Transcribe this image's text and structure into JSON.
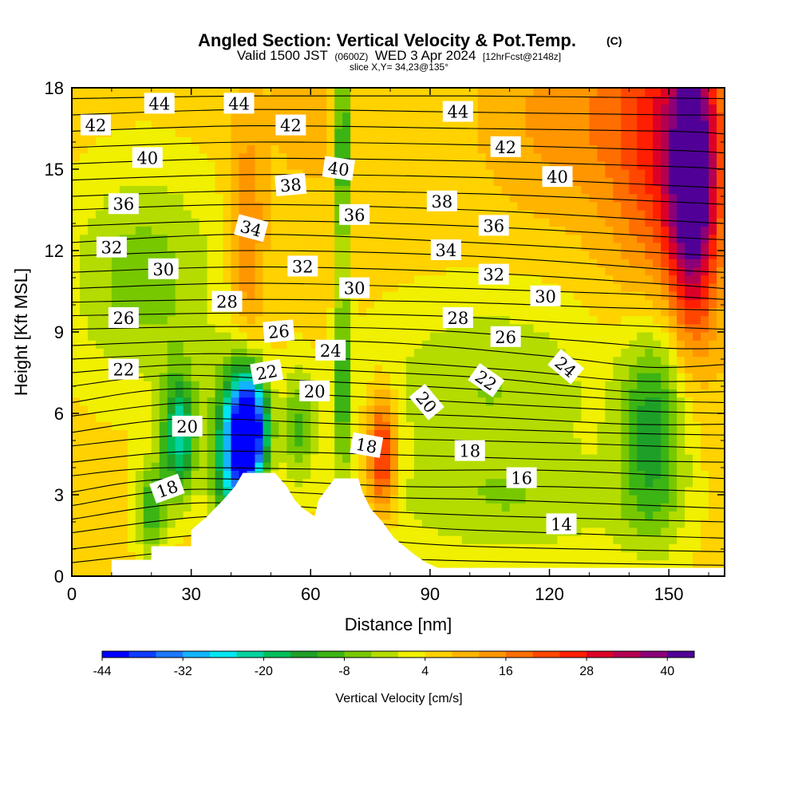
{
  "chart_data": {
    "type": "heatmap",
    "title": "Angled Section: Vertical Velocity & Pot.Temp.",
    "title_mark": "(C)",
    "subtitle": {
      "part1": "Valid 1500 JST",
      "part2": "(0600Z)",
      "part3": "WED 3 Apr 2024",
      "part4": "[12hrFcst@2148z]"
    },
    "slice_label": "slice X,Y= 34,23@135°",
    "xlabel": "Distance [nm]",
    "ylabel": "Height [Kft MSL]",
    "xlim": [
      0,
      164
    ],
    "ylim": [
      0,
      18
    ],
    "x_ticks": [
      "0",
      "30",
      "60",
      "90",
      "120",
      "150"
    ],
    "y_ticks": [
      "0",
      "3",
      "6",
      "9",
      "12",
      "15",
      "18"
    ],
    "colorbar": {
      "label": "Vertical Velocity [cm/s]",
      "tick_labels": [
        "-44",
        "-32",
        "-20",
        "-8",
        "4",
        "16",
        "28",
        "40"
      ],
      "colors": [
        "#0000ff",
        "#0f3cff",
        "#1e78ff",
        "#12b4ff",
        "#00e6f0",
        "#00d2a0",
        "#00be5a",
        "#1ea028",
        "#3cb414",
        "#78c800",
        "#b4dc00",
        "#f0f000",
        "#ffd200",
        "#ffb400",
        "#ff9600",
        "#ff6e00",
        "#ff4600",
        "#ff1e00",
        "#dc0028",
        "#b40050",
        "#8c0078",
        "#500096"
      ]
    },
    "terrain_heights": [
      [
        0,
        0
      ],
      [
        10,
        0
      ],
      [
        10,
        0.6
      ],
      [
        20,
        0.6
      ],
      [
        20,
        1.1
      ],
      [
        30,
        1.1
      ],
      [
        30,
        1.7
      ],
      [
        34,
        2.2
      ],
      [
        38,
        2.8
      ],
      [
        41,
        3.3
      ],
      [
        43,
        3.8
      ],
      [
        51,
        3.8
      ],
      [
        54,
        3.3
      ],
      [
        56,
        2.8
      ],
      [
        58,
        2.5
      ],
      [
        61,
        2.2
      ],
      [
        62,
        2.8
      ],
      [
        66,
        3.6
      ],
      [
        72,
        3.6
      ],
      [
        73,
        3.1
      ],
      [
        75,
        2.5
      ],
      [
        78,
        2.0
      ],
      [
        81,
        1.4
      ],
      [
        86,
        0.8
      ],
      [
        89,
        0.5
      ],
      [
        92,
        0.3
      ],
      [
        164,
        0.3
      ],
      [
        164,
        0
      ]
    ],
    "velocity_features": [
      {
        "x": 45,
        "y": 5.5,
        "value": -40,
        "sx": 3,
        "sy": 1.4
      },
      {
        "x": 41,
        "y": 4.5,
        "value": -30,
        "sx": 4,
        "sy": 2.2
      },
      {
        "x": 27,
        "y": 5.2,
        "value": -22,
        "sx": 3,
        "sy": 1.6
      },
      {
        "x": 68,
        "y": 16.0,
        "value": -16,
        "sx": 1.4,
        "sy": 3.0
      },
      {
        "x": 68,
        "y": 7.0,
        "value": -12,
        "sx": 1.3,
        "sy": 2.5
      },
      {
        "x": 146,
        "y": 5.5,
        "value": -14,
        "sx": 6,
        "sy": 3
      },
      {
        "x": 57,
        "y": 5.5,
        "value": -8,
        "sx": 3,
        "sy": 1.5
      },
      {
        "x": 20,
        "y": 2.5,
        "value": -10,
        "sx": 3,
        "sy": 1.3
      },
      {
        "x": 78,
        "y": 4.5,
        "value": 30,
        "sx": 2.5,
        "sy": 1.5
      },
      {
        "x": 44,
        "y": 12.5,
        "value": 18,
        "sx": 3,
        "sy": 3.0
      },
      {
        "x": 156,
        "y": 14.5,
        "value": 40,
        "sx": 4,
        "sy": 3.5
      },
      {
        "x": 150,
        "y": 16.0,
        "value": 26,
        "sx": 10,
        "sy": 4.5
      },
      {
        "x": 125,
        "y": 17.0,
        "value": 14,
        "sx": 14,
        "sy": 2.5
      },
      {
        "x": 60,
        "y": 17.0,
        "value": 10,
        "sx": 8,
        "sy": 2.0
      },
      {
        "x": 18,
        "y": 11.0,
        "value": -6,
        "sx": 14,
        "sy": 3.0
      },
      {
        "x": 105,
        "y": 7.0,
        "value": -4,
        "sx": 22,
        "sy": 2.5
      },
      {
        "x": 110,
        "y": 2.5,
        "value": -2,
        "sx": 25,
        "sy": 1.5
      }
    ],
    "velocity_background": 6,
    "theta_lines": [
      [
        [
          0,
          0.5
        ],
        [
          40,
          1.0
        ],
        [
          90,
          0.6
        ],
        [
          164,
          0.4
        ]
      ],
      [
        [
          0,
          1.0
        ],
        [
          40,
          1.6
        ],
        [
          70,
          1.4
        ],
        [
          100,
          1.1
        ],
        [
          164,
          0.9
        ]
      ],
      [
        [
          0,
          1.6
        ],
        [
          35,
          2.2
        ],
        [
          70,
          2.0
        ],
        [
          100,
          1.7
        ],
        [
          164,
          1.4
        ]
      ],
      [
        [
          0,
          2.1
        ],
        [
          32,
          2.7
        ],
        [
          75,
          2.4
        ],
        [
          110,
          2.2
        ],
        [
          164,
          2.0
        ]
      ],
      [
        [
          0,
          2.6
        ],
        [
          30,
          3.2
        ],
        [
          80,
          2.9
        ],
        [
          110,
          2.8
        ],
        [
          164,
          2.5
        ]
      ],
      [
        [
          0,
          3.1
        ],
        [
          28,
          3.6
        ],
        [
          85,
          3.3
        ],
        [
          120,
          3.3
        ],
        [
          164,
          3.1
        ]
      ],
      [
        [
          0,
          3.7
        ],
        [
          25,
          4.0
        ],
        [
          80,
          3.9
        ],
        [
          120,
          3.9
        ],
        [
          164,
          3.6
        ]
      ],
      [
        [
          0,
          4.2
        ],
        [
          30,
          4.6
        ],
        [
          75,
          4.5
        ],
        [
          120,
          4.3
        ],
        [
          164,
          4.2
        ]
      ],
      [
        [
          0,
          4.8
        ],
        [
          30,
          5.2
        ],
        [
          70,
          5.1
        ],
        [
          125,
          4.9
        ],
        [
          164,
          4.7
        ]
      ],
      [
        [
          0,
          5.3
        ],
        [
          28,
          5.8
        ],
        [
          70,
          5.6
        ],
        [
          130,
          5.3
        ],
        [
          164,
          5.2
        ]
      ],
      [
        [
          0,
          5.9
        ],
        [
          30,
          6.4
        ],
        [
          60,
          6.1
        ],
        [
          100,
          5.9
        ],
        [
          140,
          5.6
        ],
        [
          164,
          5.6
        ]
      ],
      [
        [
          0,
          6.4
        ],
        [
          25,
          6.9
        ],
        [
          60,
          6.7
        ],
        [
          100,
          6.4
        ],
        [
          140,
          6.1
        ],
        [
          164,
          6.0
        ]
      ],
      [
        [
          0,
          7.0
        ],
        [
          25,
          7.4
        ],
        [
          60,
          7.2
        ],
        [
          100,
          6.9
        ],
        [
          140,
          6.5
        ],
        [
          164,
          6.4
        ]
      ],
      [
        [
          0,
          7.5
        ],
        [
          30,
          7.8
        ],
        [
          65,
          7.6
        ],
        [
          105,
          7.3
        ],
        [
          140,
          6.8
        ],
        [
          164,
          6.8
        ]
      ],
      [
        [
          0,
          8.0
        ],
        [
          35,
          8.2
        ],
        [
          70,
          8.0
        ],
        [
          110,
          7.6
        ],
        [
          140,
          7.2
        ],
        [
          164,
          7.2
        ]
      ],
      [
        [
          0,
          8.5
        ],
        [
          40,
          8.7
        ],
        [
          80,
          8.6
        ],
        [
          120,
          8.1
        ],
        [
          145,
          7.7
        ],
        [
          164,
          7.8
        ]
      ],
      [
        [
          0,
          9.1
        ],
        [
          40,
          9.2
        ],
        [
          85,
          9.1
        ],
        [
          125,
          8.7
        ],
        [
          150,
          8.4
        ],
        [
          164,
          8.4
        ]
      ],
      [
        [
          0,
          9.6
        ],
        [
          45,
          9.7
        ],
        [
          90,
          9.6
        ],
        [
          130,
          9.3
        ],
        [
          164,
          9.1
        ]
      ],
      [
        [
          0,
          10.1
        ],
        [
          45,
          10.2
        ],
        [
          95,
          10.1
        ],
        [
          135,
          9.9
        ],
        [
          164,
          9.8
        ]
      ],
      [
        [
          0,
          10.6
        ],
        [
          45,
          10.8
        ],
        [
          100,
          10.6
        ],
        [
          140,
          10.4
        ],
        [
          164,
          10.2
        ]
      ],
      [
        [
          0,
          11.2
        ],
        [
          45,
          11.4
        ],
        [
          100,
          11.2
        ],
        [
          145,
          10.8
        ],
        [
          164,
          10.6
        ]
      ],
      [
        [
          0,
          11.8
        ],
        [
          45,
          12.0
        ],
        [
          100,
          11.8
        ],
        [
          150,
          11.3
        ],
        [
          164,
          11.2
        ]
      ],
      [
        [
          0,
          12.3
        ],
        [
          45,
          12.6
        ],
        [
          100,
          12.3
        ],
        [
          150,
          11.9
        ],
        [
          164,
          11.8
        ]
      ],
      [
        [
          0,
          12.9
        ],
        [
          45,
          13.1
        ],
        [
          100,
          12.9
        ],
        [
          150,
          12.5
        ],
        [
          164,
          12.4
        ]
      ],
      [
        [
          0,
          13.5
        ],
        [
          45,
          13.7
        ],
        [
          100,
          13.5
        ],
        [
          150,
          13.1
        ],
        [
          164,
          13.0
        ]
      ],
      [
        [
          0,
          14.0
        ],
        [
          45,
          14.2
        ],
        [
          100,
          14.1
        ],
        [
          150,
          13.8
        ],
        [
          164,
          13.7
        ]
      ],
      [
        [
          0,
          14.6
        ],
        [
          45,
          14.8
        ],
        [
          100,
          14.7
        ],
        [
          150,
          14.4
        ],
        [
          164,
          14.3
        ]
      ],
      [
        [
          0,
          15.2
        ],
        [
          45,
          15.4
        ],
        [
          100,
          15.3
        ],
        [
          150,
          15.1
        ],
        [
          164,
          15.0
        ]
      ],
      [
        [
          0,
          15.8
        ],
        [
          45,
          16.0
        ],
        [
          100,
          15.9
        ],
        [
          150,
          15.7
        ],
        [
          164,
          15.6
        ]
      ],
      [
        [
          0,
          16.4
        ],
        [
          45,
          16.6
        ],
        [
          100,
          16.5
        ],
        [
          150,
          16.4
        ],
        [
          164,
          16.3
        ]
      ],
      [
        [
          0,
          17.0
        ],
        [
          45,
          17.2
        ],
        [
          100,
          17.1
        ],
        [
          150,
          17.0
        ],
        [
          164,
          17.0
        ]
      ],
      [
        [
          0,
          17.6
        ],
        [
          45,
          17.7
        ],
        [
          100,
          17.7
        ],
        [
          164,
          17.6
        ]
      ]
    ],
    "theta_labels": [
      {
        "text": "44",
        "x": 22,
        "y": 17.4,
        "angle": 0
      },
      {
        "text": "44",
        "x": 42,
        "y": 17.4,
        "angle": 0
      },
      {
        "text": "42",
        "x": 6,
        "y": 16.6,
        "angle": 0
      },
      {
        "text": "42",
        "x": 55,
        "y": 16.6,
        "angle": 0
      },
      {
        "text": "44",
        "x": 97,
        "y": 17.1,
        "angle": 0
      },
      {
        "text": "40",
        "x": 19,
        "y": 15.4,
        "angle": 0
      },
      {
        "text": "40",
        "x": 67,
        "y": 15.0,
        "angle": 8
      },
      {
        "text": "42",
        "x": 109,
        "y": 15.8,
        "angle": 0
      },
      {
        "text": "40",
        "x": 122,
        "y": 14.7,
        "angle": 0
      },
      {
        "text": "38",
        "x": 55,
        "y": 14.4,
        "angle": -5
      },
      {
        "text": "38",
        "x": 93,
        "y": 13.8,
        "angle": 0
      },
      {
        "text": "36",
        "x": 13,
        "y": 13.7,
        "angle": 0
      },
      {
        "text": "36",
        "x": 71,
        "y": 13.3,
        "angle": 0
      },
      {
        "text": "36",
        "x": 106,
        "y": 12.9,
        "angle": 0
      },
      {
        "text": "34",
        "x": 45,
        "y": 12.8,
        "angle": 15
      },
      {
        "text": "34",
        "x": 94,
        "y": 12.0,
        "angle": 0
      },
      {
        "text": "32",
        "x": 10,
        "y": 12.1,
        "angle": 0
      },
      {
        "text": "32",
        "x": 58,
        "y": 11.4,
        "angle": 0
      },
      {
        "text": "32",
        "x": 106,
        "y": 11.1,
        "angle": 0
      },
      {
        "text": "30",
        "x": 23,
        "y": 11.3,
        "angle": 0
      },
      {
        "text": "30",
        "x": 71,
        "y": 10.6,
        "angle": 0
      },
      {
        "text": "30",
        "x": 119,
        "y": 10.3,
        "angle": 0
      },
      {
        "text": "28",
        "x": 39,
        "y": 10.1,
        "angle": 0
      },
      {
        "text": "28",
        "x": 97,
        "y": 9.5,
        "angle": 0
      },
      {
        "text": "26",
        "x": 13,
        "y": 9.5,
        "angle": 0
      },
      {
        "text": "26",
        "x": 52,
        "y": 9.0,
        "angle": -5
      },
      {
        "text": "26",
        "x": 109,
        "y": 8.8,
        "angle": 0
      },
      {
        "text": "24",
        "x": 65,
        "y": 8.3,
        "angle": 0
      },
      {
        "text": "24",
        "x": 124,
        "y": 7.7,
        "angle": 40
      },
      {
        "text": "22",
        "x": 13,
        "y": 7.6,
        "angle": 0
      },
      {
        "text": "22",
        "x": 49,
        "y": 7.5,
        "angle": -10
      },
      {
        "text": "22",
        "x": 104,
        "y": 7.2,
        "angle": 35
      },
      {
        "text": "20",
        "x": 61,
        "y": 6.8,
        "angle": 0
      },
      {
        "text": "20",
        "x": 89,
        "y": 6.4,
        "angle": 50
      },
      {
        "text": "20",
        "x": 29,
        "y": 5.5,
        "angle": 0
      },
      {
        "text": "18",
        "x": 74,
        "y": 4.8,
        "angle": 10
      },
      {
        "text": "18",
        "x": 100,
        "y": 4.6,
        "angle": 0
      },
      {
        "text": "18",
        "x": 24,
        "y": 3.2,
        "angle": -20
      },
      {
        "text": "16",
        "x": 113,
        "y": 3.6,
        "angle": 0
      },
      {
        "text": "14",
        "x": 123,
        "y": 1.9,
        "angle": 0
      }
    ]
  }
}
